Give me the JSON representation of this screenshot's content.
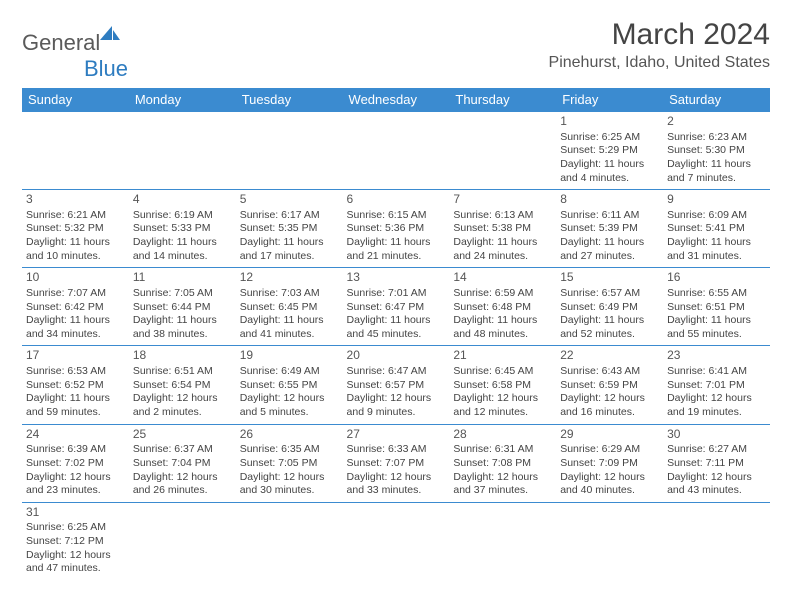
{
  "logo": {
    "general": "General",
    "blue": "Blue"
  },
  "title": "March 2024",
  "location": "Pinehurst, Idaho, United States",
  "colors": {
    "header_bg": "#3b8bd0",
    "header_text": "#ffffff",
    "border": "#3b8bd0",
    "body_text": "#444444",
    "logo_gray": "#5a5a5a",
    "logo_blue": "#2e7cc0"
  },
  "weekdays": [
    "Sunday",
    "Monday",
    "Tuesday",
    "Wednesday",
    "Thursday",
    "Friday",
    "Saturday"
  ],
  "weeks": [
    [
      null,
      null,
      null,
      null,
      null,
      {
        "n": "1",
        "sr": "Sunrise: 6:25 AM",
        "ss": "Sunset: 5:29 PM",
        "d1": "Daylight: 11 hours",
        "d2": "and 4 minutes."
      },
      {
        "n": "2",
        "sr": "Sunrise: 6:23 AM",
        "ss": "Sunset: 5:30 PM",
        "d1": "Daylight: 11 hours",
        "d2": "and 7 minutes."
      }
    ],
    [
      {
        "n": "3",
        "sr": "Sunrise: 6:21 AM",
        "ss": "Sunset: 5:32 PM",
        "d1": "Daylight: 11 hours",
        "d2": "and 10 minutes."
      },
      {
        "n": "4",
        "sr": "Sunrise: 6:19 AM",
        "ss": "Sunset: 5:33 PM",
        "d1": "Daylight: 11 hours",
        "d2": "and 14 minutes."
      },
      {
        "n": "5",
        "sr": "Sunrise: 6:17 AM",
        "ss": "Sunset: 5:35 PM",
        "d1": "Daylight: 11 hours",
        "d2": "and 17 minutes."
      },
      {
        "n": "6",
        "sr": "Sunrise: 6:15 AM",
        "ss": "Sunset: 5:36 PM",
        "d1": "Daylight: 11 hours",
        "d2": "and 21 minutes."
      },
      {
        "n": "7",
        "sr": "Sunrise: 6:13 AM",
        "ss": "Sunset: 5:38 PM",
        "d1": "Daylight: 11 hours",
        "d2": "and 24 minutes."
      },
      {
        "n": "8",
        "sr": "Sunrise: 6:11 AM",
        "ss": "Sunset: 5:39 PM",
        "d1": "Daylight: 11 hours",
        "d2": "and 27 minutes."
      },
      {
        "n": "9",
        "sr": "Sunrise: 6:09 AM",
        "ss": "Sunset: 5:41 PM",
        "d1": "Daylight: 11 hours",
        "d2": "and 31 minutes."
      }
    ],
    [
      {
        "n": "10",
        "sr": "Sunrise: 7:07 AM",
        "ss": "Sunset: 6:42 PM",
        "d1": "Daylight: 11 hours",
        "d2": "and 34 minutes."
      },
      {
        "n": "11",
        "sr": "Sunrise: 7:05 AM",
        "ss": "Sunset: 6:44 PM",
        "d1": "Daylight: 11 hours",
        "d2": "and 38 minutes."
      },
      {
        "n": "12",
        "sr": "Sunrise: 7:03 AM",
        "ss": "Sunset: 6:45 PM",
        "d1": "Daylight: 11 hours",
        "d2": "and 41 minutes."
      },
      {
        "n": "13",
        "sr": "Sunrise: 7:01 AM",
        "ss": "Sunset: 6:47 PM",
        "d1": "Daylight: 11 hours",
        "d2": "and 45 minutes."
      },
      {
        "n": "14",
        "sr": "Sunrise: 6:59 AM",
        "ss": "Sunset: 6:48 PM",
        "d1": "Daylight: 11 hours",
        "d2": "and 48 minutes."
      },
      {
        "n": "15",
        "sr": "Sunrise: 6:57 AM",
        "ss": "Sunset: 6:49 PM",
        "d1": "Daylight: 11 hours",
        "d2": "and 52 minutes."
      },
      {
        "n": "16",
        "sr": "Sunrise: 6:55 AM",
        "ss": "Sunset: 6:51 PM",
        "d1": "Daylight: 11 hours",
        "d2": "and 55 minutes."
      }
    ],
    [
      {
        "n": "17",
        "sr": "Sunrise: 6:53 AM",
        "ss": "Sunset: 6:52 PM",
        "d1": "Daylight: 11 hours",
        "d2": "and 59 minutes."
      },
      {
        "n": "18",
        "sr": "Sunrise: 6:51 AM",
        "ss": "Sunset: 6:54 PM",
        "d1": "Daylight: 12 hours",
        "d2": "and 2 minutes."
      },
      {
        "n": "19",
        "sr": "Sunrise: 6:49 AM",
        "ss": "Sunset: 6:55 PM",
        "d1": "Daylight: 12 hours",
        "d2": "and 5 minutes."
      },
      {
        "n": "20",
        "sr": "Sunrise: 6:47 AM",
        "ss": "Sunset: 6:57 PM",
        "d1": "Daylight: 12 hours",
        "d2": "and 9 minutes."
      },
      {
        "n": "21",
        "sr": "Sunrise: 6:45 AM",
        "ss": "Sunset: 6:58 PM",
        "d1": "Daylight: 12 hours",
        "d2": "and 12 minutes."
      },
      {
        "n": "22",
        "sr": "Sunrise: 6:43 AM",
        "ss": "Sunset: 6:59 PM",
        "d1": "Daylight: 12 hours",
        "d2": "and 16 minutes."
      },
      {
        "n": "23",
        "sr": "Sunrise: 6:41 AM",
        "ss": "Sunset: 7:01 PM",
        "d1": "Daylight: 12 hours",
        "d2": "and 19 minutes."
      }
    ],
    [
      {
        "n": "24",
        "sr": "Sunrise: 6:39 AM",
        "ss": "Sunset: 7:02 PM",
        "d1": "Daylight: 12 hours",
        "d2": "and 23 minutes."
      },
      {
        "n": "25",
        "sr": "Sunrise: 6:37 AM",
        "ss": "Sunset: 7:04 PM",
        "d1": "Daylight: 12 hours",
        "d2": "and 26 minutes."
      },
      {
        "n": "26",
        "sr": "Sunrise: 6:35 AM",
        "ss": "Sunset: 7:05 PM",
        "d1": "Daylight: 12 hours",
        "d2": "and 30 minutes."
      },
      {
        "n": "27",
        "sr": "Sunrise: 6:33 AM",
        "ss": "Sunset: 7:07 PM",
        "d1": "Daylight: 12 hours",
        "d2": "and 33 minutes."
      },
      {
        "n": "28",
        "sr": "Sunrise: 6:31 AM",
        "ss": "Sunset: 7:08 PM",
        "d1": "Daylight: 12 hours",
        "d2": "and 37 minutes."
      },
      {
        "n": "29",
        "sr": "Sunrise: 6:29 AM",
        "ss": "Sunset: 7:09 PM",
        "d1": "Daylight: 12 hours",
        "d2": "and 40 minutes."
      },
      {
        "n": "30",
        "sr": "Sunrise: 6:27 AM",
        "ss": "Sunset: 7:11 PM",
        "d1": "Daylight: 12 hours",
        "d2": "and 43 minutes."
      }
    ],
    [
      {
        "n": "31",
        "sr": "Sunrise: 6:25 AM",
        "ss": "Sunset: 7:12 PM",
        "d1": "Daylight: 12 hours",
        "d2": "and 47 minutes."
      },
      null,
      null,
      null,
      null,
      null,
      null
    ]
  ]
}
